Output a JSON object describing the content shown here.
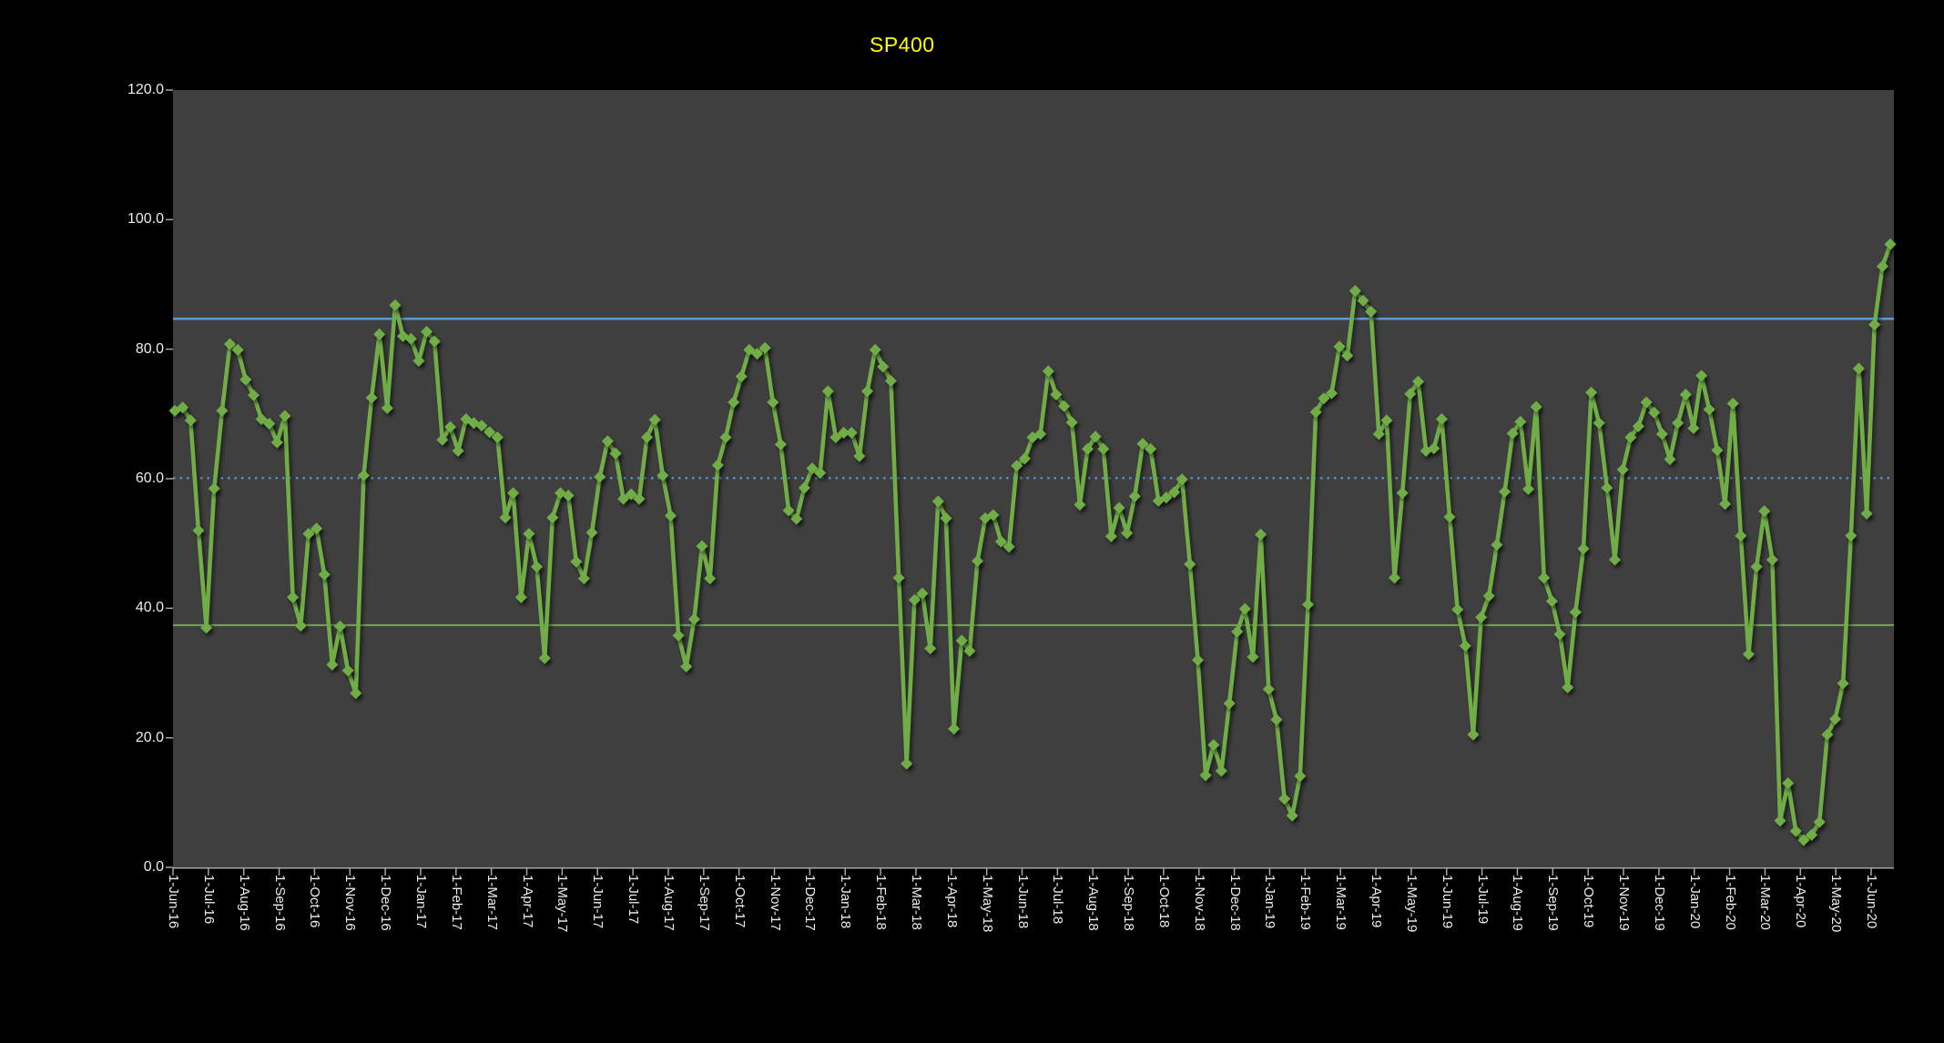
{
  "title": "SP400",
  "colors": {
    "background": "#000000",
    "plot_background": "#3F3F3F",
    "series_green": "#70AD47",
    "reference_blue": "#5B9BD5",
    "reference_green": "#70AD47",
    "axis_gray": "#A6A6A6",
    "label_white": "#EDEDED",
    "title_yellow": "#FFFF00"
  },
  "chart_data": {
    "type": "line",
    "title": "SP400",
    "xlabel": "",
    "ylabel": "",
    "ylim": [
      0,
      120
    ],
    "grid": false,
    "legend": "none",
    "marker": "diamond",
    "y_tick_labels": [
      "0.0",
      "20.0",
      "40.0",
      "60.0",
      "80.0",
      "100.0",
      "120.0"
    ],
    "y_tick_values": [
      0,
      20,
      40,
      60,
      80,
      100,
      120
    ],
    "x_tick_labels": [
      "1-Jun-16",
      "1-Jul-16",
      "1-Aug-16",
      "1-Sep-16",
      "1-Oct-16",
      "1-Nov-16",
      "1-Dec-16",
      "1-Jan-17",
      "1-Feb-17",
      "1-Mar-17",
      "1-Apr-17",
      "1-May-17",
      "1-Jun-17",
      "1-Jul-17",
      "1-Aug-17",
      "1-Sep-17",
      "1-Oct-17",
      "1-Nov-17",
      "1-Dec-17",
      "1-Jan-18",
      "1-Feb-18",
      "1-Mar-18",
      "1-Apr-18",
      "1-May-18",
      "1-Jun-18",
      "1-Jul-18",
      "1-Aug-18",
      "1-Sep-18",
      "1-Oct-18",
      "1-Nov-18",
      "1-Dec-18",
      "1-Jan-19",
      "1-Feb-19",
      "1-Mar-19",
      "1-Apr-19",
      "1-May-19",
      "1-Jun-19",
      "1-Jul-19",
      "1-Aug-19",
      "1-Sep-19",
      "1-Oct-19",
      "1-Nov-19",
      "1-Dec-19",
      "1-Jan-20",
      "1-Feb-20",
      "1-Mar-20",
      "1-Apr-20",
      "1-May-20",
      "1-Jun-20"
    ],
    "reference_lines": [
      {
        "name": "upper-band-solid-blue",
        "value": 84.7,
        "style": "solid",
        "color": "#5B9BD5",
        "width": 2.5
      },
      {
        "name": "mid-band-dotted-blue",
        "value": 60.1,
        "style": "dotted",
        "color": "#5B9BD5",
        "width": 2.2
      },
      {
        "name": "lower-band-solid-green",
        "value": 37.4,
        "style": "solid",
        "color": "#70AD47",
        "width": 2
      }
    ],
    "series": [
      {
        "name": "SP400",
        "color": "#70AD47",
        "values": [
          70.5,
          71,
          69,
          52,
          37,
          58.5,
          70.5,
          80.8,
          79.9,
          75.3,
          72.9,
          69.2,
          68.5,
          65.6,
          69.7,
          41.7,
          37.3,
          51.5,
          52.3,
          45.2,
          31.3,
          37.2,
          30.4,
          26.9,
          60.5,
          72.5,
          82.3,
          70.9,
          86.8,
          82,
          81.6,
          78.2,
          82.7,
          81.2,
          66,
          68,
          64.3,
          69.2,
          68.6,
          68.2,
          67.2,
          66.4,
          54,
          57.8,
          41.7,
          51.5,
          46.4,
          32.3,
          54,
          57.8,
          57.4,
          47.2,
          44.6,
          51.7,
          60.3,
          65.8,
          63.9,
          56.9,
          57.6,
          56.9,
          66.4,
          69.1,
          60.5,
          54.3,
          35.8,
          31,
          38.3,
          49.6,
          44.6,
          62.1,
          66.4,
          71.8,
          75.8,
          79.9,
          79.3,
          80.2,
          71.8,
          65.3,
          55.1,
          53.8,
          58.6,
          61.6,
          60.9,
          73.5,
          66.4,
          67.1,
          67.1,
          63.5,
          73.5,
          79.9,
          77.3,
          75.1,
          44.7,
          16,
          41.3,
          42.3,
          33.8,
          56.5,
          53.9,
          21.4,
          35,
          33.4,
          47.3,
          53.9,
          54.4,
          50.3,
          49.5,
          62,
          63.1,
          66.4,
          66.9,
          76.6,
          73,
          71.2,
          68.7,
          56,
          64.6,
          66.5,
          64.6,
          51.1,
          55.5,
          51.6,
          57.3,
          65.4,
          64.6,
          56.6,
          57.1,
          57.9,
          59.9,
          46.8,
          32,
          14.2,
          18.9,
          14.9,
          25.3,
          36.4,
          39.9,
          32.5,
          51.4,
          27.5,
          22.8,
          10.6,
          8,
          14.1,
          40.6,
          70.3,
          72.4,
          73.2,
          80.4,
          79,
          89,
          87.5,
          85.8,
          66.9,
          69,
          44.7,
          57.8,
          73.1,
          75,
          64.3,
          64.7,
          69.2,
          54.1,
          39.8,
          34.2,
          20.5,
          38.6,
          41.9,
          49.8,
          58,
          67,
          68.8,
          58.4,
          71.1,
          44.7,
          41.1,
          36,
          27.8,
          39.4,
          49.2,
          73.3,
          68.6,
          58.6,
          47.5,
          61.4,
          66.4,
          68.1,
          71.8,
          70.2,
          66.9,
          63,
          68.6,
          73,
          67.8,
          75.9,
          70.7,
          64.4,
          56.1,
          71.6,
          51.2,
          32.9,
          46.4,
          55,
          47.5,
          7.2,
          13,
          5.6,
          4.2,
          5,
          7,
          20.5,
          22.9,
          28.4,
          51.2,
          77,
          54.6,
          83.8,
          92.8,
          96.2
        ]
      }
    ]
  }
}
